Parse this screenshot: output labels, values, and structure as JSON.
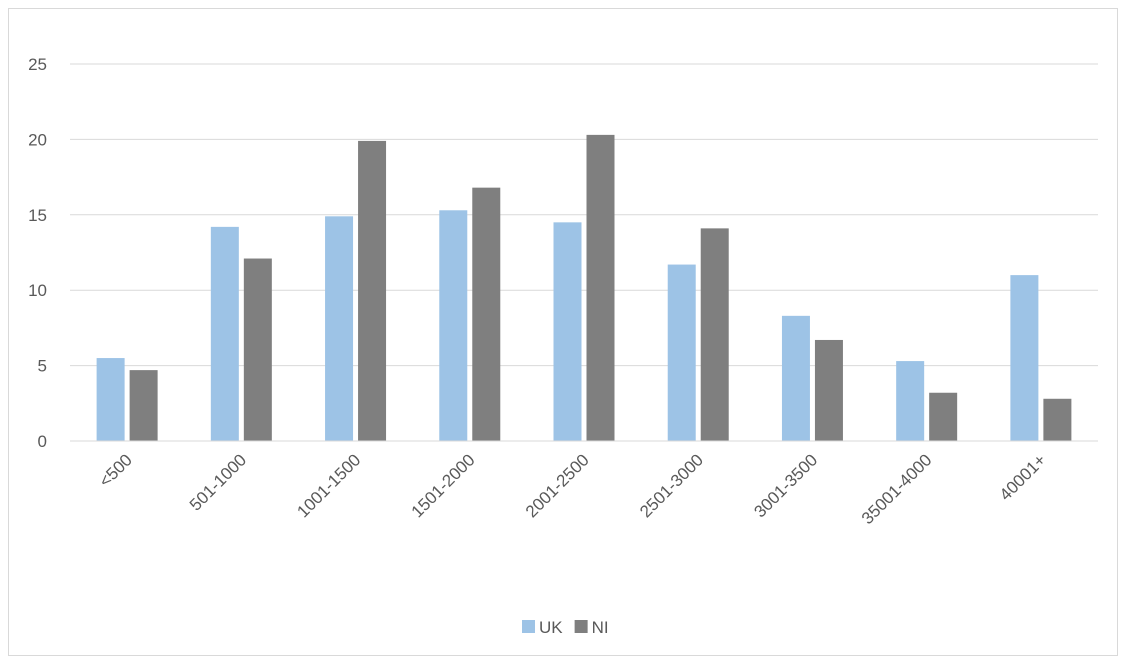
{
  "chart_data": {
    "type": "bar",
    "title": "",
    "xlabel": "",
    "ylabel": "",
    "categories": [
      "<500",
      "501-1000",
      "1001-1500",
      "1501-2000",
      "2001-2500",
      "2501-3000",
      "3001-3500",
      "35001-4000",
      "40001+"
    ],
    "series": [
      {
        "name": "UK",
        "color": "#9dc3e6",
        "values": [
          5.5,
          14.2,
          14.9,
          15.3,
          14.5,
          11.7,
          8.3,
          5.3,
          11.0
        ]
      },
      {
        "name": "NI",
        "color": "#7f7f7f",
        "values": [
          4.7,
          12.1,
          19.9,
          16.8,
          20.3,
          14.1,
          6.7,
          3.2,
          2.8
        ]
      }
    ],
    "ylim": [
      0,
      25
    ],
    "yticks": [
      0,
      5,
      10,
      15,
      20,
      25
    ],
    "grid": true,
    "legend_position": "bottom"
  }
}
